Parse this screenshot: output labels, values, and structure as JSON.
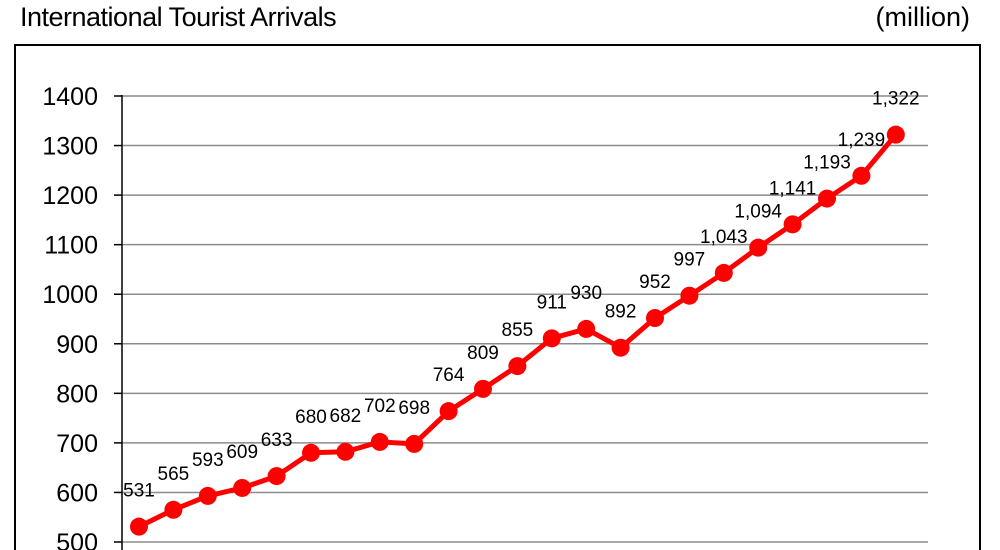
{
  "chart_data": {
    "type": "line",
    "title": "International Tourist Arrivals",
    "unit_label": "(million)",
    "xlabel": "",
    "ylabel": "",
    "ylim": [
      500,
      1400
    ],
    "yticks": [
      "500",
      "600",
      "700",
      "800",
      "900",
      "1000",
      "1100",
      "1200",
      "1300",
      "1400"
    ],
    "grid": true,
    "series": [
      {
        "color": "#ff0000",
        "values": [
          531,
          565,
          593,
          609,
          633,
          680,
          682,
          702,
          698,
          764,
          809,
          855,
          911,
          930,
          892,
          952,
          997,
          1043,
          1094,
          1141,
          1193,
          1239,
          1322
        ],
        "labels": [
          "531",
          "565",
          "593",
          "609",
          "633",
          "680",
          "682",
          "702",
          "698",
          "764",
          "809",
          "855",
          "911",
          "930",
          "892",
          "952",
          "997",
          "1,043",
          "1,094",
          "1,141",
          "1,193",
          "1,239",
          "1,322"
        ]
      }
    ]
  }
}
